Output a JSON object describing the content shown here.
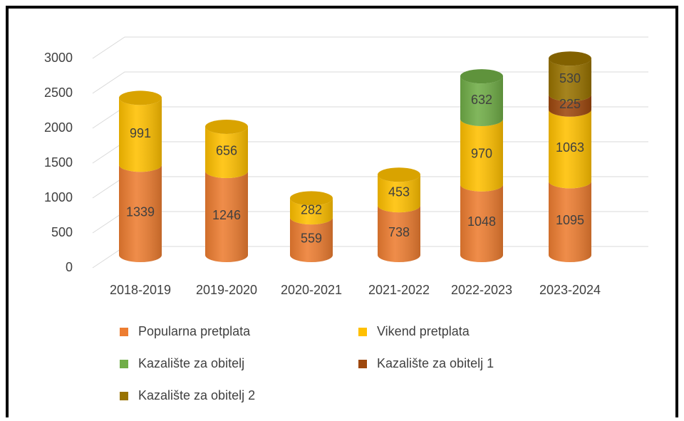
{
  "chart_data": {
    "type": "bar",
    "categories": [
      "2018-2019",
      "2019-2020",
      "2020-2021",
      "2021-2022",
      "2022-2023",
      "2023-2024"
    ],
    "series": [
      {
        "name": "Popularna pretplata",
        "color": "#ed7d31",
        "values": [
          1339,
          1246,
          559,
          738,
          1048,
          1095
        ]
      },
      {
        "name": "Vikend pretplata",
        "color": "#ffc000",
        "values": [
          991,
          656,
          282,
          453,
          970,
          1063
        ]
      },
      {
        "name": "Kazalište za obitelj",
        "color": "#70ad47",
        "values": [
          null,
          null,
          null,
          null,
          632,
          null
        ]
      },
      {
        "name": "Kazalište za obitelj 1",
        "color": "#9e480e",
        "values": [
          null,
          null,
          null,
          null,
          null,
          225
        ]
      },
      {
        "name": "Kazalište za obitelj 2",
        "color": "#997300",
        "values": [
          null,
          null,
          null,
          null,
          null,
          530
        ]
      }
    ],
    "ylim": [
      0,
      3000
    ],
    "yticks": [
      0,
      500,
      1000,
      1500,
      2000,
      2500,
      3000
    ],
    "grid": true,
    "stacked": true,
    "legend": "bottom"
  }
}
